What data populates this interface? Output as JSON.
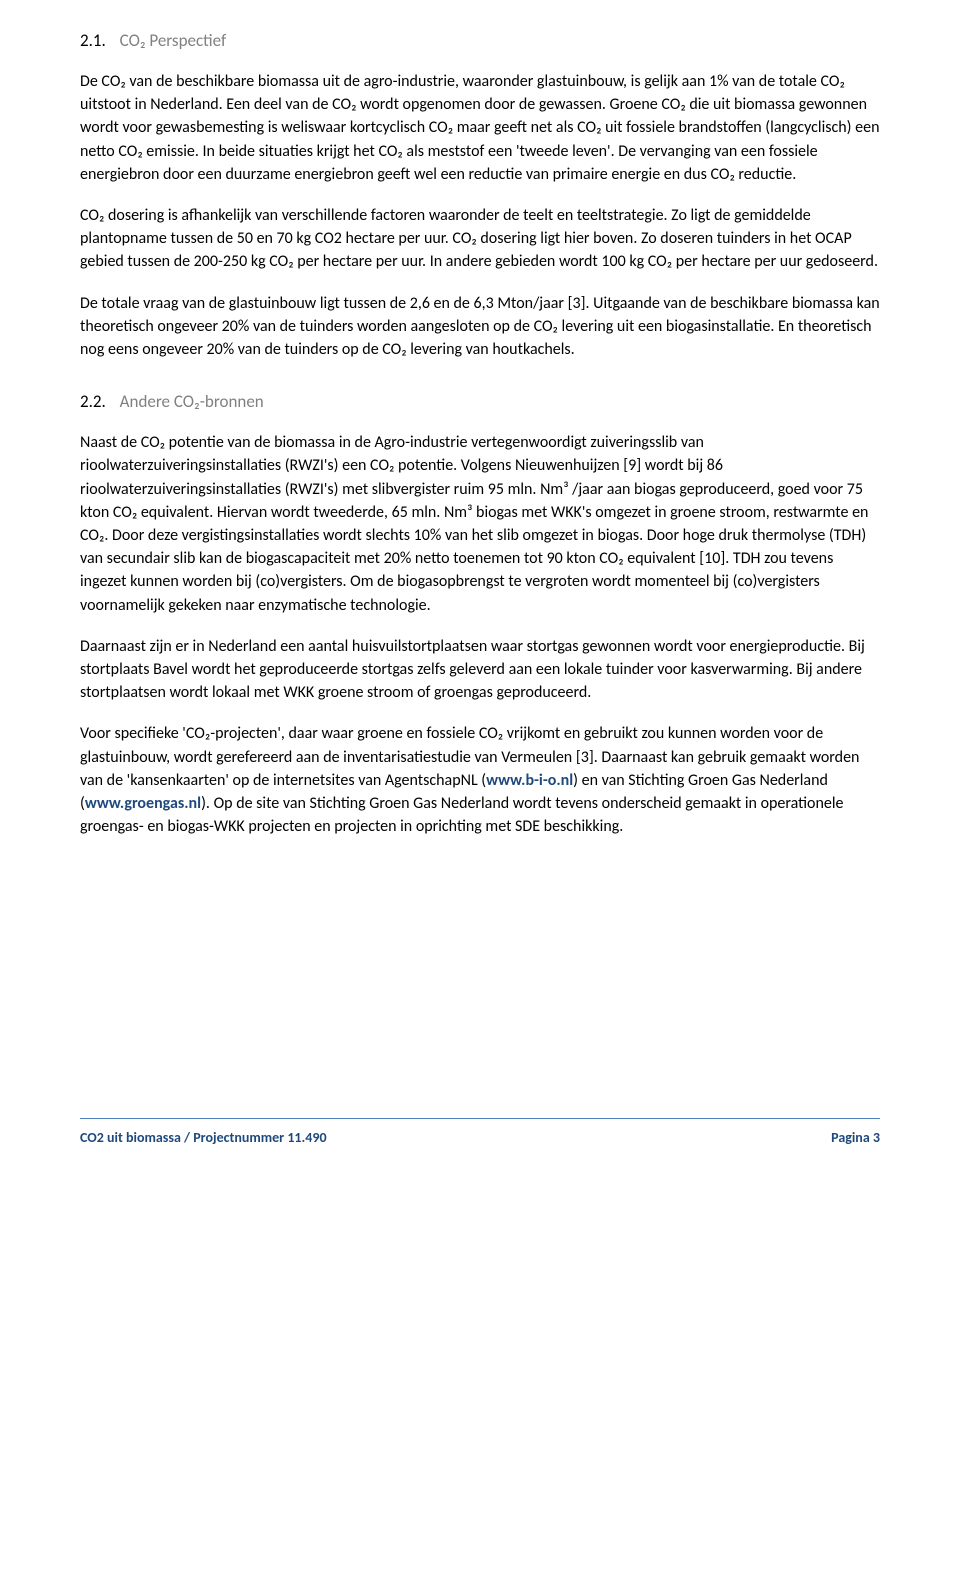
{
  "sections": {
    "s1": {
      "number": "2.1.",
      "title": "CO₂ Perspectief",
      "p1": "De CO₂ van de beschikbare biomassa uit de agro-industrie, waaronder glastuinbouw, is gelijk aan 1% van de totale CO₂ uitstoot in Nederland. Een deel van de CO₂ wordt opgenomen door de gewassen. Groene CO₂ die uit biomassa gewonnen wordt voor gewasbemesting is weliswaar kortcyclisch CO₂ maar geeft net als CO₂ uit fossiele brandstoffen (langcyclisch) een netto CO₂ emissie. In beide situaties krijgt het CO₂ als meststof een 'tweede leven'. De vervanging van een fossiele energiebron door een duurzame energiebron geeft wel een reductie van primaire energie en dus CO₂ reductie.",
      "p2": "CO₂ dosering is afhankelijk van verschillende factoren waaronder de teelt en teeltstrategie. Zo ligt de gemiddelde plantopname tussen de 50 en 70 kg CO2 hectare per uur. CO₂ dosering ligt hier boven. Zo doseren tuinders in het OCAP gebied tussen de 200-250 kg CO₂ per hectare per uur. In andere gebieden wordt 100 kg CO₂ per hectare per uur gedoseerd.",
      "p3": "De totale vraag van de glastuinbouw ligt tussen de 2,6 en de 6,3 Mton/jaar [3]. Uitgaande van de beschikbare biomassa kan theoretisch ongeveer 20% van de tuinders worden aangesloten op de CO₂ levering uit een biogasinstallatie. En theoretisch nog eens ongeveer 20% van de tuinders op de CO₂ levering van houtkachels."
    },
    "s2": {
      "number": "2.2.",
      "title": "Andere CO₂-bronnen",
      "p1": "Naast de CO₂ potentie van de biomassa in de Agro-industrie vertegenwoordigt zuiveringsslib van rioolwaterzuiveringsinstallaties (RWZI's) een CO₂ potentie. Volgens Nieuwenhuijzen [9] wordt bij 86 rioolwaterzuiveringsinstallaties (RWZI's) met slibvergister ruim 95 mln. Nm³ /jaar aan biogas geproduceerd, goed voor 75 kton CO₂ equivalent. Hiervan wordt tweederde, 65 mln. Nm³ biogas met WKK's omgezet in groene stroom, restwarmte en CO₂. Door deze vergistingsinstallaties wordt slechts 10% van het slib omgezet in biogas. Door hoge druk thermolyse (TDH) van secundair slib kan de biogascapaciteit met 20% netto toenemen tot 90 kton CO₂ equivalent [10]. TDH zou tevens ingezet kunnen worden bij (co)vergisters. Om de biogasopbrengst te vergroten wordt momenteel bij (co)vergisters voornamelijk gekeken naar enzymatische technologie.",
      "p2": "Daarnaast zijn er in Nederland een aantal huisvuilstortplaatsen waar stortgas gewonnen wordt voor energieproductie. Bij stortplaats Bavel wordt het geproduceerde stortgas zelfs geleverd aan een lokale tuinder voor kasverwarming. Bij andere stortplaatsen wordt lokaal met WKK groene stroom of groengas geproduceerd.",
      "p3_a": "Voor specifieke 'CO₂-projecten', daar waar groene en fossiele CO₂ vrijkomt en gebruikt zou kunnen worden voor de glastuinbouw, wordt gerefereerd aan de inventarisatiestudie van Vermeulen [3]. Daarnaast kan gebruik gemaakt worden van de 'kansenkaarten' op de internetsites van AgentschapNL (",
      "link1": "www.b-i-o.nl",
      "p3_b": ") en van Stichting Groen Gas Nederland (",
      "link2": "www.groengas.nl",
      "p3_c": "). Op de site van Stichting Groen Gas Nederland wordt tevens onderscheid gemaakt in operationele groengas- en biogas-WKK projecten en projecten in oprichting met SDE beschikking."
    }
  },
  "footer": {
    "left": "CO2 uit biomassa  / Projectnummer 11.490",
    "right": "Pagina 3"
  }
}
